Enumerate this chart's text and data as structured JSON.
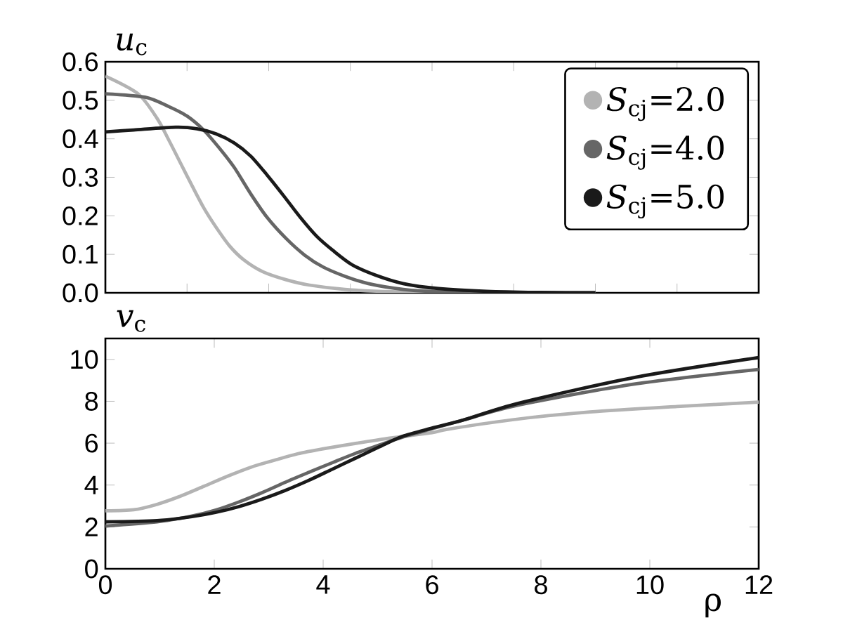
{
  "chart_data": [
    {
      "type": "line",
      "ylabel": "*u*$_{c}$",
      "xlim": [
        0,
        12
      ],
      "ylim": [
        0,
        0.6
      ],
      "xticks": [
        {
          "value": 0,
          "label": null
        },
        {
          "value": 1.5,
          "label": null
        },
        {
          "value": 3,
          "label": null
        },
        {
          "value": 4.5,
          "label": null
        },
        {
          "value": 6,
          "label": null
        },
        {
          "value": 7.5,
          "label": null
        },
        {
          "value": 9,
          "label": null
        },
        {
          "value": 10.5,
          "label": null
        },
        {
          "value": 12,
          "label": null
        }
      ],
      "yticks": [
        {
          "value": 0,
          "label": "0.0"
        },
        0.1,
        0.2,
        0.3,
        0.4,
        0.5,
        0.6
      ],
      "tick_labels": "y",
      "legend": "top right",
      "series": [
        {
          "name": "*S*$_{cj}$=2.0",
          "color": "#b3b3b3",
          "x": [
            0,
            0.6,
            0.95,
            1.16,
            1.38,
            1.6,
            1.81,
            2.03,
            2.28,
            2.54,
            2.89,
            3.32,
            3.75,
            4.4,
            5.26,
            6.5,
            9
          ],
          "values": [
            0.563,
            0.517,
            0.453,
            0.398,
            0.337,
            0.276,
            0.22,
            0.171,
            0.122,
            0.086,
            0.055,
            0.034,
            0.02,
            0.009,
            0.003,
            0.001,
            0
          ]
        },
        {
          "name": "*S*$_{cj}$=4.0",
          "color": "#666666",
          "x": [
            0,
            0.73,
            1.16,
            1.5,
            1.81,
            2.11,
            2.37,
            2.67,
            2.97,
            3.32,
            3.66,
            4.0,
            4.4,
            4.83,
            5.47,
            6.1,
            7.5,
            9
          ],
          "values": [
            0.517,
            0.508,
            0.484,
            0.459,
            0.422,
            0.373,
            0.325,
            0.257,
            0.196,
            0.141,
            0.098,
            0.067,
            0.043,
            0.024,
            0.009,
            0.003,
            0.001,
            0
          ]
        },
        {
          "name": "*S*$_{cj}$=5.0",
          "color": "#1a1a1a",
          "x": [
            0,
            0.52,
            1.29,
            1.68,
            2.03,
            2.37,
            2.67,
            2.97,
            3.28,
            3.58,
            3.88,
            4.18,
            4.53,
            4.96,
            5.47,
            6.12,
            7,
            8,
            9
          ],
          "values": [
            0.418,
            0.423,
            0.43,
            0.426,
            0.413,
            0.389,
            0.355,
            0.306,
            0.251,
            0.196,
            0.147,
            0.11,
            0.073,
            0.046,
            0.024,
            0.011,
            0.004,
            0.001,
            0
          ]
        }
      ]
    },
    {
      "type": "line",
      "ylabel": "*v*$_{c}$",
      "xlabel": "ρ",
      "xlim": [
        0,
        12
      ],
      "ylim": [
        0,
        11
      ],
      "xticks": [
        0,
        2,
        4,
        6,
        8,
        10,
        12
      ],
      "yticks": [
        0,
        2,
        4,
        6,
        8,
        10
      ],
      "series": [
        {
          "color": "#b3b3b3",
          "x": [
            0,
            0.52,
            0.95,
            1.38,
            1.81,
            2.24,
            2.67,
            3.1,
            3.53,
            4.0,
            4.6,
            5.25,
            6.0,
            6.32,
            7.61,
            8.9,
            10.5,
            12
          ],
          "values": [
            2.77,
            2.82,
            3.08,
            3.47,
            3.94,
            4.42,
            4.85,
            5.18,
            5.49,
            5.73,
            5.99,
            6.25,
            6.5,
            6.68,
            7.16,
            7.49,
            7.75,
            7.96
          ]
        },
        {
          "color": "#666666",
          "x": [
            0,
            0.95,
            1.59,
            2.02,
            2.45,
            2.88,
            3.31,
            3.74,
            4.17,
            4.6,
            5.03,
            5.46,
            6.0,
            6.58,
            7.61,
            9.76,
            12
          ],
          "values": [
            2.04,
            2.24,
            2.52,
            2.8,
            3.19,
            3.64,
            4.14,
            4.61,
            5.07,
            5.52,
            5.91,
            6.29,
            6.69,
            7.11,
            7.83,
            8.84,
            9.52
          ]
        },
        {
          "color": "#1a1a1a",
          "x": [
            0,
            0.95,
            1.59,
            2.02,
            2.45,
            2.88,
            3.31,
            3.74,
            4.17,
            4.6,
            5.03,
            5.46,
            6.0,
            6.58,
            7.61,
            9.76,
            12
          ],
          "values": [
            2.24,
            2.3,
            2.49,
            2.69,
            2.97,
            3.33,
            3.75,
            4.23,
            4.76,
            5.29,
            5.82,
            6.33,
            6.72,
            7.11,
            7.92,
            9.16,
            10.09
          ]
        }
      ]
    }
  ]
}
